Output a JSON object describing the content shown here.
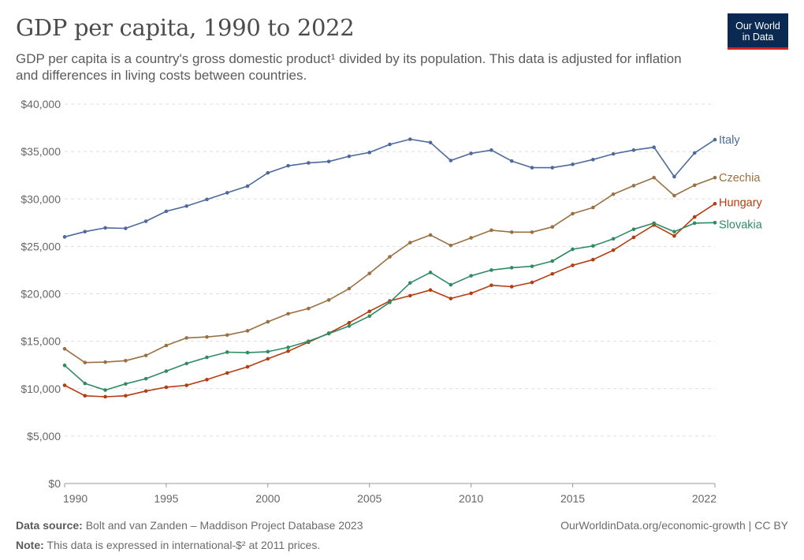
{
  "header": {
    "title": "GDP per capita, 1990 to 2022",
    "subtitle": "GDP per capita is a country's gross domestic product¹ divided by its population. This data is adjusted for inflation and differences in living costs between countries."
  },
  "logo": {
    "line1": "Our World",
    "line2": "in Data",
    "bg_color": "#0b2a52",
    "accent_color": "#ce261e"
  },
  "footer": {
    "source_label": "Data source:",
    "source_text": "Bolt and van Zanden – Maddison Project Database 2023",
    "note_label": "Note:",
    "note_text": "This data is expressed in international-$² at 2011 prices.",
    "url_text": "OurWorldinData.org/economic-growth | CC BY"
  },
  "chart_data": {
    "type": "line",
    "title": "GDP per capita, 1990 to 2022",
    "xlabel": "",
    "ylabel": "",
    "xlim": [
      1990,
      2022
    ],
    "ylim": [
      0,
      40000
    ],
    "grid": true,
    "legend": "right-end labels",
    "x_ticks": [
      "1990",
      "1995",
      "2000",
      "2005",
      "2010",
      "2015",
      "2022"
    ],
    "x_tick_values": [
      1990,
      1995,
      2000,
      2005,
      2010,
      2015,
      2022
    ],
    "y_ticks": [
      "$0",
      "$5,000",
      "$10,000",
      "$15,000",
      "$20,000",
      "$25,000",
      "$30,000",
      "$35,000",
      "$40,000"
    ],
    "y_tick_values": [
      0,
      5000,
      10000,
      15000,
      20000,
      25000,
      30000,
      35000,
      40000
    ],
    "x": [
      1990,
      1991,
      1992,
      1993,
      1994,
      1995,
      1996,
      1997,
      1998,
      1999,
      2000,
      2001,
      2002,
      2003,
      2004,
      2005,
      2006,
      2007,
      2008,
      2009,
      2010,
      2011,
      2012,
      2013,
      2014,
      2015,
      2016,
      2017,
      2018,
      2019,
      2020,
      2021,
      2022
    ],
    "series": [
      {
        "name": "Italy",
        "color": "#4c6a9c",
        "values": [
          26000,
          26550,
          26950,
          26900,
          27650,
          28700,
          29250,
          29950,
          30650,
          31350,
          32750,
          33500,
          33800,
          33950,
          34500,
          34900,
          35750,
          36300,
          35950,
          34050,
          34800,
          35150,
          34000,
          33300,
          33300,
          33650,
          34150,
          34750,
          35150,
          35450,
          32350,
          34850,
          36250
        ]
      },
      {
        "name": "Czechia",
        "color": "#9a7041",
        "values": [
          14200,
          12750,
          12800,
          12950,
          13500,
          14550,
          15350,
          15450,
          15650,
          16100,
          17050,
          17900,
          18450,
          19350,
          20550,
          22150,
          23900,
          25400,
          26200,
          25100,
          25900,
          26700,
          26500,
          26500,
          27050,
          28450,
          29100,
          30500,
          31400,
          32250,
          30350,
          31450,
          32250
        ]
      },
      {
        "name": "Hungary",
        "color": "#b33c10",
        "values": [
          10350,
          9250,
          9150,
          9250,
          9750,
          10150,
          10350,
          10950,
          11650,
          12300,
          13150,
          13950,
          14900,
          15850,
          16950,
          18150,
          19250,
          19800,
          20400,
          19500,
          20050,
          20900,
          20750,
          21200,
          22100,
          23000,
          23600,
          24600,
          25950,
          27250,
          26100,
          28100,
          29500
        ]
      },
      {
        "name": "Slovakia",
        "color": "#2f8b63",
        "values": [
          12450,
          10550,
          9850,
          10500,
          11050,
          11850,
          12650,
          13300,
          13850,
          13800,
          13900,
          14350,
          15000,
          15800,
          16600,
          17650,
          19100,
          21150,
          22250,
          20950,
          21900,
          22500,
          22750,
          22900,
          23450,
          24700,
          25050,
          25800,
          26800,
          27450,
          26550,
          27450,
          27500
        ]
      }
    ]
  }
}
